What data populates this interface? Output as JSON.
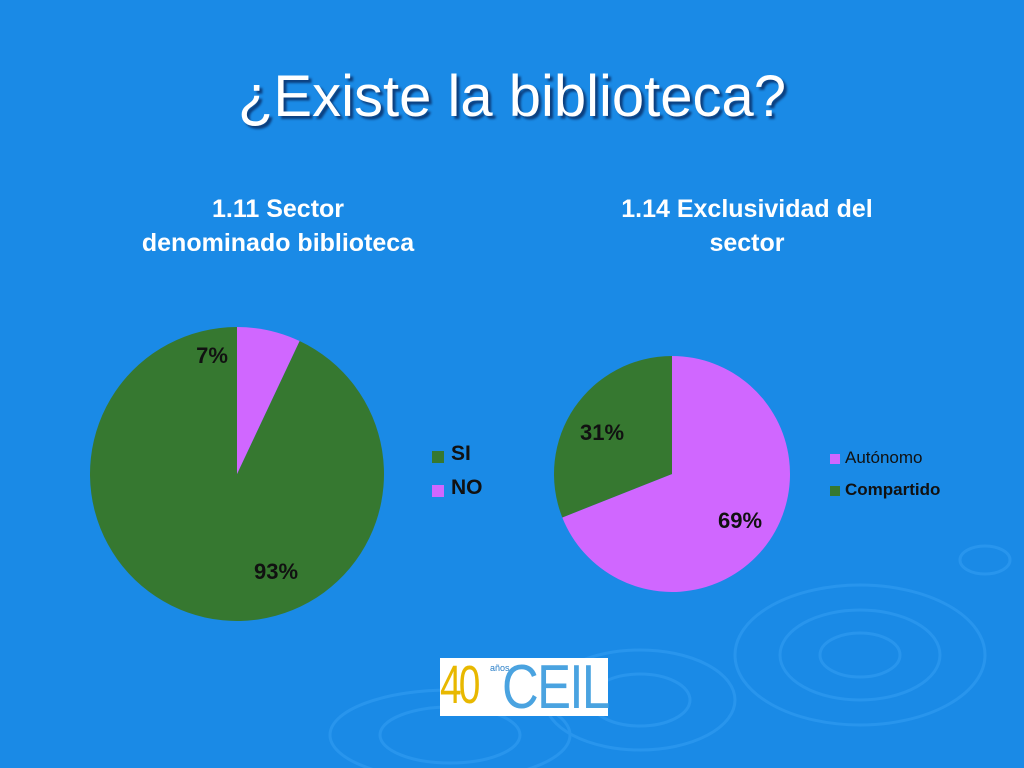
{
  "slide": {
    "title": "¿Existe la biblioteca?"
  },
  "colors": {
    "background": "#1a8ae6",
    "green": "#367830",
    "pink": "#d067ff"
  },
  "chart_data": [
    {
      "type": "pie",
      "title": "1.11 Sector\ndenominado biblioteca",
      "slices": [
        {
          "label": "SI",
          "value": 93,
          "display": "93%",
          "color": "#367830"
        },
        {
          "label": "NO",
          "value": 7,
          "display": "7%",
          "color": "#d067ff"
        }
      ],
      "legend": [
        "SI",
        "NO"
      ],
      "legend_position": "right"
    },
    {
      "type": "pie",
      "title": "1.14 Exclusividad del\nsector",
      "slices": [
        {
          "label": "Autónomo",
          "value": 69,
          "display": "69%",
          "color": "#d067ff"
        },
        {
          "label": "Compartido",
          "value": 31,
          "display": "31%",
          "color": "#367830"
        }
      ],
      "legend": [
        "Autónomo",
        "Compartido"
      ],
      "legend_position": "right"
    }
  ],
  "logo": {
    "number": "40",
    "small_text": "años",
    "word": "CEIL"
  }
}
